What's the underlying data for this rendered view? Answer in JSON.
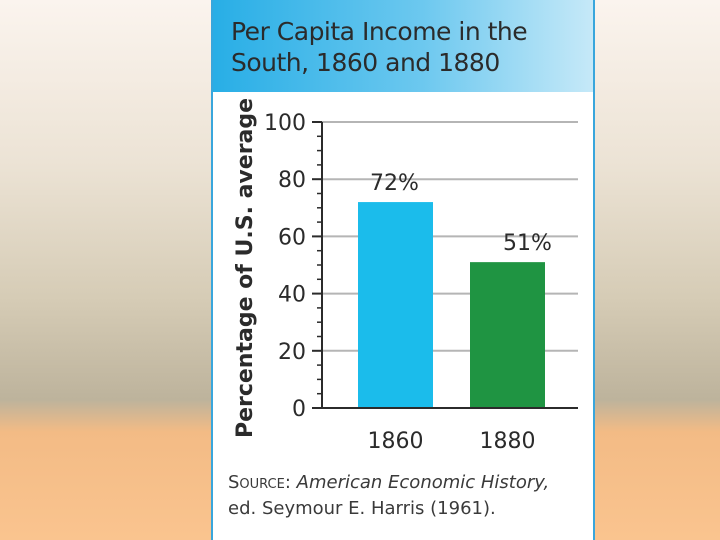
{
  "chart_data": {
    "type": "bar",
    "title": "Per Capita Income in the South, 1860 and 1880",
    "ylabel": "Percentage of U.S. average",
    "xlabel": "",
    "categories": [
      "1860",
      "1880"
    ],
    "values": [
      72,
      51
    ],
    "data_labels": [
      "72%",
      "51%"
    ],
    "bar_colors": [
      "#1bbceb",
      "#1f9442"
    ],
    "ylim": [
      0,
      100
    ],
    "yticks": [
      0,
      20,
      40,
      60,
      80,
      100
    ],
    "ytick_labels": [
      "0",
      "20",
      "40",
      "60",
      "80",
      "100"
    ],
    "grid": true,
    "legend": "none"
  },
  "source": {
    "label": "Source:",
    "title": "American Economic History,",
    "rest": "ed. Seymour E. Harris (1961)."
  }
}
